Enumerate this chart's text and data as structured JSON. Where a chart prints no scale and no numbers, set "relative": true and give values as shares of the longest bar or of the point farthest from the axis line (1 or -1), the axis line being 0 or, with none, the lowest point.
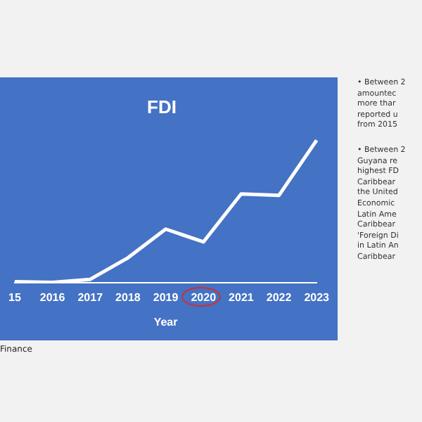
{
  "chart_data": {
    "type": "line",
    "title": "FDI",
    "xlabel": "Year",
    "categories": [
      "15",
      "2016",
      "2017",
      "2018",
      "2019",
      "2020",
      "2021",
      "2022",
      "2023"
    ],
    "relative": true,
    "series": [
      {
        "color": "#ffffff",
        "values": [
          0.006,
          0,
          0.022,
          0.173,
          0.375,
          0.285,
          0.622,
          0.612,
          1
        ]
      }
    ],
    "marker": "none",
    "grid": false,
    "legend": false,
    "annotations": [
      "Finance",
      "• Between 2",
      "amountec",
      "more thar",
      "reported u",
      "from 2015",
      "• Between 2",
      "Guyana re",
      "highest FD",
      "Caribbear",
      "the United",
      "Economic",
      "Latin Ame",
      "Caribbear",
      "'Foreign Di",
      "in Latin An",
      "Caribbear"
    ]
  }
}
